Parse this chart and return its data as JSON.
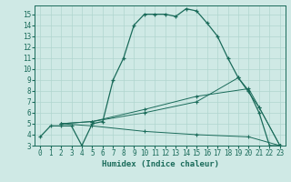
{
  "xlabel": "Humidex (Indice chaleur)",
  "bg_color": "#cfe9e5",
  "grid_color": "#b0d5cf",
  "line_color": "#1a6b5a",
  "xlim": [
    -0.5,
    23.5
  ],
  "ylim": [
    3,
    15.8
  ],
  "xticks": [
    0,
    1,
    2,
    3,
    4,
    5,
    6,
    7,
    8,
    9,
    10,
    11,
    12,
    13,
    14,
    15,
    16,
    17,
    18,
    19,
    20,
    21,
    22,
    23
  ],
  "yticks": [
    3,
    4,
    5,
    6,
    7,
    8,
    9,
    10,
    11,
    12,
    13,
    14,
    15
  ],
  "line1_x": [
    0,
    1,
    2,
    3,
    4,
    5,
    6,
    7,
    8,
    9,
    10,
    11,
    12,
    13,
    14,
    15,
    16,
    17,
    18,
    19,
    20,
    21,
    22,
    23
  ],
  "line1_y": [
    3.8,
    4.8,
    4.8,
    4.8,
    3.0,
    5.0,
    5.2,
    9.0,
    11.0,
    14.0,
    15.0,
    15.0,
    15.0,
    14.8,
    15.5,
    15.3,
    14.2,
    13.0,
    11.0,
    9.2,
    8.0,
    6.0,
    3.0,
    3.0
  ],
  "line2_x": [
    2,
    5,
    10,
    15,
    19,
    21,
    23
  ],
  "line2_y": [
    5.0,
    5.2,
    6.0,
    7.0,
    9.2,
    6.5,
    3.0
  ],
  "line3_x": [
    2,
    5,
    10,
    15,
    20,
    21,
    23
  ],
  "line3_y": [
    5.0,
    5.2,
    6.3,
    7.5,
    8.2,
    6.5,
    3.0
  ],
  "line4_x": [
    2,
    5,
    10,
    15,
    20,
    23
  ],
  "line4_y": [
    5.0,
    4.8,
    4.3,
    4.0,
    3.8,
    3.0
  ]
}
